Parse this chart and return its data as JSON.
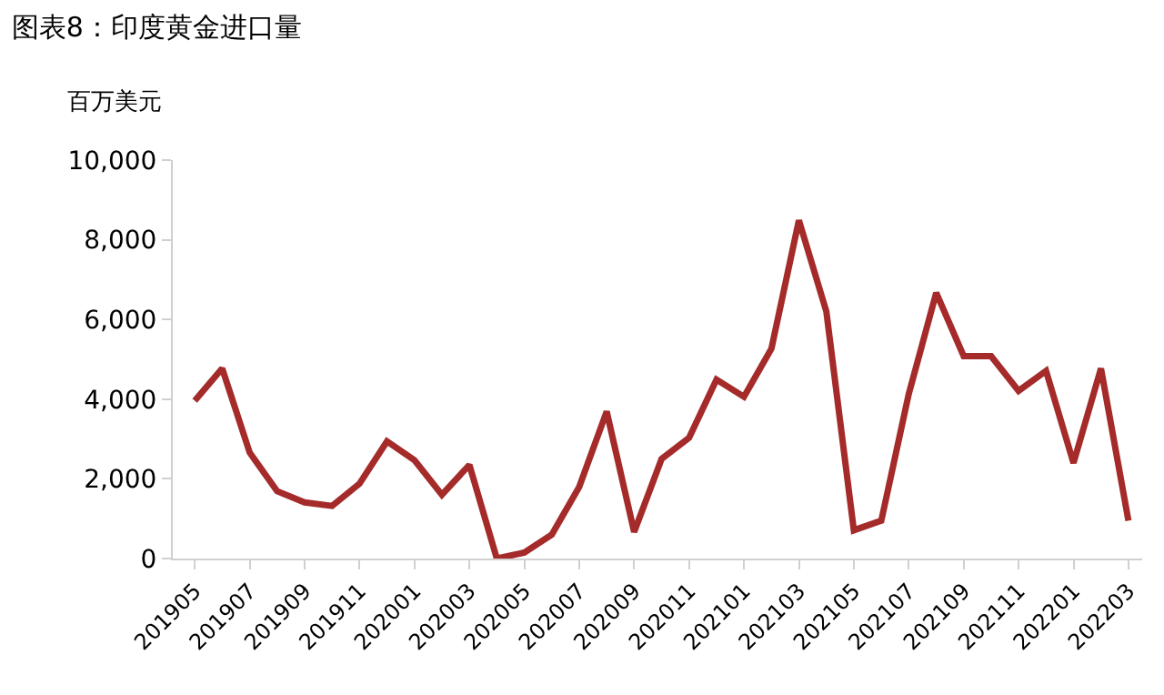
{
  "chart_data": {
    "type": "line",
    "title": "图表8：印度黄金进口量",
    "ylabel": "百万美元",
    "categories": [
      "201905",
      null,
      "201907",
      null,
      "201909",
      null,
      "201911",
      null,
      "202001",
      null,
      "202003",
      null,
      "202005",
      null,
      "202007",
      null,
      "202009",
      null,
      "202011",
      null,
      "202101",
      null,
      "202103",
      null,
      "202105",
      null,
      "202107",
      null,
      "202109",
      null,
      "202111",
      null,
      "202201",
      null,
      "202203"
    ],
    "series": [
      {
        "color": "#a52a2a",
        "values": [
          3960,
          4770,
          2660,
          1690,
          1410,
          1320,
          1880,
          2940,
          2470,
          1600,
          2350,
          0,
          150,
          600,
          1800,
          3690,
          670,
          2500,
          3030,
          4490,
          4060,
          5270,
          8490,
          6200,
          710,
          950,
          4130,
          6670,
          5080,
          5080,
          4210,
          4710,
          2400,
          4770,
          950
        ]
      }
    ],
    "ylim": [
      0,
      10000
    ],
    "yticks": [
      {
        "value": 0,
        "label": "0"
      },
      {
        "value": 2000,
        "label": "2,000"
      },
      {
        "value": 4000,
        "label": "4,000"
      },
      {
        "value": 6000,
        "label": "6,000"
      },
      {
        "value": 8000,
        "label": "8,000"
      },
      {
        "value": 10000,
        "label": "10,000"
      }
    ],
    "legend": false,
    "marker": "none",
    "line_style": "solid"
  }
}
